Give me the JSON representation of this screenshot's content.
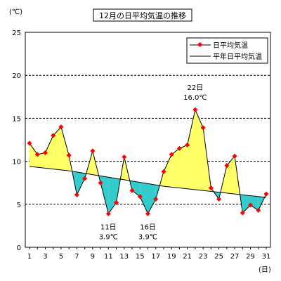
{
  "chart_data": {
    "type": "line",
    "title": "12月の日平均気温の推移",
    "ylabel": "(℃)",
    "xlabel": "(日)",
    "ylim": [
      0,
      25
    ],
    "yticks": [
      0,
      5,
      10,
      15,
      20,
      25
    ],
    "xlim": [
      1,
      31
    ],
    "xticks": [
      1,
      3,
      5,
      7,
      9,
      11,
      13,
      15,
      17,
      19,
      21,
      23,
      25,
      27,
      29,
      31
    ],
    "grid": "horizontal-dashed",
    "legend_position": "top-right",
    "x": [
      1,
      2,
      3,
      4,
      5,
      6,
      7,
      8,
      9,
      10,
      11,
      12,
      13,
      14,
      15,
      16,
      17,
      18,
      19,
      20,
      21,
      22,
      23,
      24,
      25,
      26,
      27,
      28,
      29,
      30,
      31
    ],
    "series": [
      {
        "name": "日平均気温",
        "marker": "diamond",
        "color": "#ff0000",
        "line_color": "#000000",
        "values": [
          12.1,
          10.8,
          11.0,
          13.0,
          14.0,
          10.7,
          6.1,
          8.0,
          11.2,
          7.5,
          3.9,
          5.2,
          10.5,
          6.6,
          5.9,
          3.9,
          5.6,
          8.8,
          10.8,
          11.5,
          11.9,
          16.0,
          13.9,
          6.9,
          5.6,
          9.5,
          10.6,
          4.0,
          4.9,
          4.3,
          6.2
        ]
      },
      {
        "name": "平年日平均気温",
        "color": "#000000",
        "values": [
          9.4,
          9.3,
          9.2,
          9.1,
          9.0,
          8.9,
          8.75,
          8.6,
          8.45,
          8.3,
          8.15,
          8.0,
          7.85,
          7.7,
          7.55,
          7.4,
          7.25,
          7.1,
          7.0,
          6.9,
          6.8,
          6.7,
          6.6,
          6.5,
          6.4,
          6.3,
          6.2,
          6.1,
          6.0,
          5.9,
          5.8
        ]
      }
    ],
    "fill_above_normal_color": "#ffff66",
    "fill_below_normal_color": "#33cccc",
    "annotations": [
      {
        "x": 11,
        "lines": [
          "11日",
          "3.9℃"
        ],
        "placement": "below"
      },
      {
        "x": 16,
        "lines": [
          "16日",
          "3.9℃"
        ],
        "placement": "below"
      },
      {
        "x": 22,
        "lines": [
          "22日",
          "16.0℃"
        ],
        "placement": "above"
      }
    ]
  }
}
